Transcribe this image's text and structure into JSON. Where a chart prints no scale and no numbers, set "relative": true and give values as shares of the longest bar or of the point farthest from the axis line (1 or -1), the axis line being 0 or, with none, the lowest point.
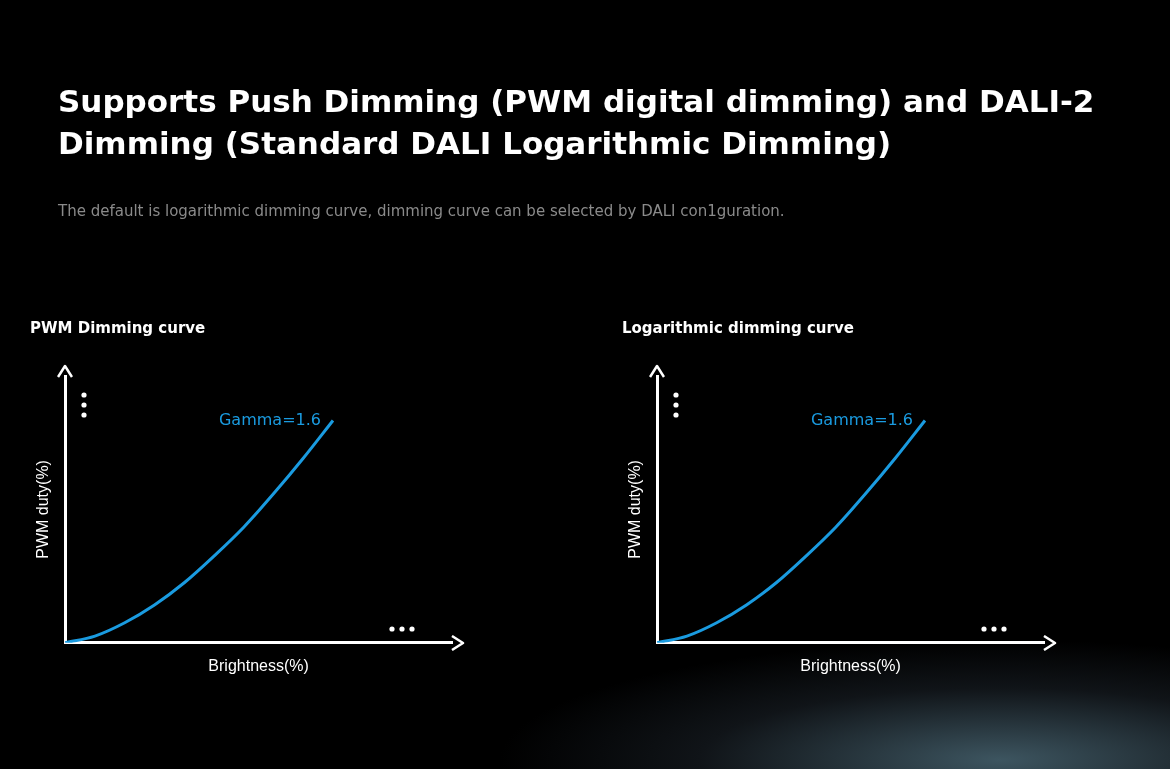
{
  "chart_data": [
    {
      "type": "other",
      "title": "Supports Push Dimming (PWM digital dimming) and DALI-2 Dimming (Standard DALI Logarithmic Dimming)",
      "subtitle": "The default is logarithmic dimming curve, dimming curve can be selected by DALI con1guration."
    },
    {
      "type": "line",
      "title": "PWM Dimming curve",
      "xlabel": "Brightness(%)",
      "ylabel": "PWM duty(%)",
      "relative": true,
      "categories": [
        null,
        null,
        null,
        null,
        null,
        null,
        null,
        null,
        null,
        null,
        null,
        null,
        null,
        null
      ],
      "series": [
        {
          "name": "Gamma=1.6",
          "color": "#1a9be0",
          "values": [
            0,
            0.03,
            0.09,
            0.17,
            0.27,
            0.39,
            0.52,
            0.67,
            0.83,
            1,
            null,
            null,
            null,
            null
          ]
        }
      ]
    },
    {
      "type": "line",
      "title": "Logarithmic dimming curve",
      "xlabel": "Brightness(%)",
      "ylabel": "PWM duty(%)",
      "relative": true,
      "categories": [
        null,
        null,
        null,
        null,
        null,
        null,
        null,
        null,
        null,
        null,
        null,
        null,
        null,
        null
      ],
      "series": [
        {
          "name": "Gamma=1.6",
          "color": "#1a9be0",
          "values": [
            0,
            0.03,
            0.09,
            0.17,
            0.27,
            0.39,
            0.52,
            0.67,
            0.83,
            1,
            null,
            null,
            null,
            null
          ]
        }
      ]
    }
  ]
}
